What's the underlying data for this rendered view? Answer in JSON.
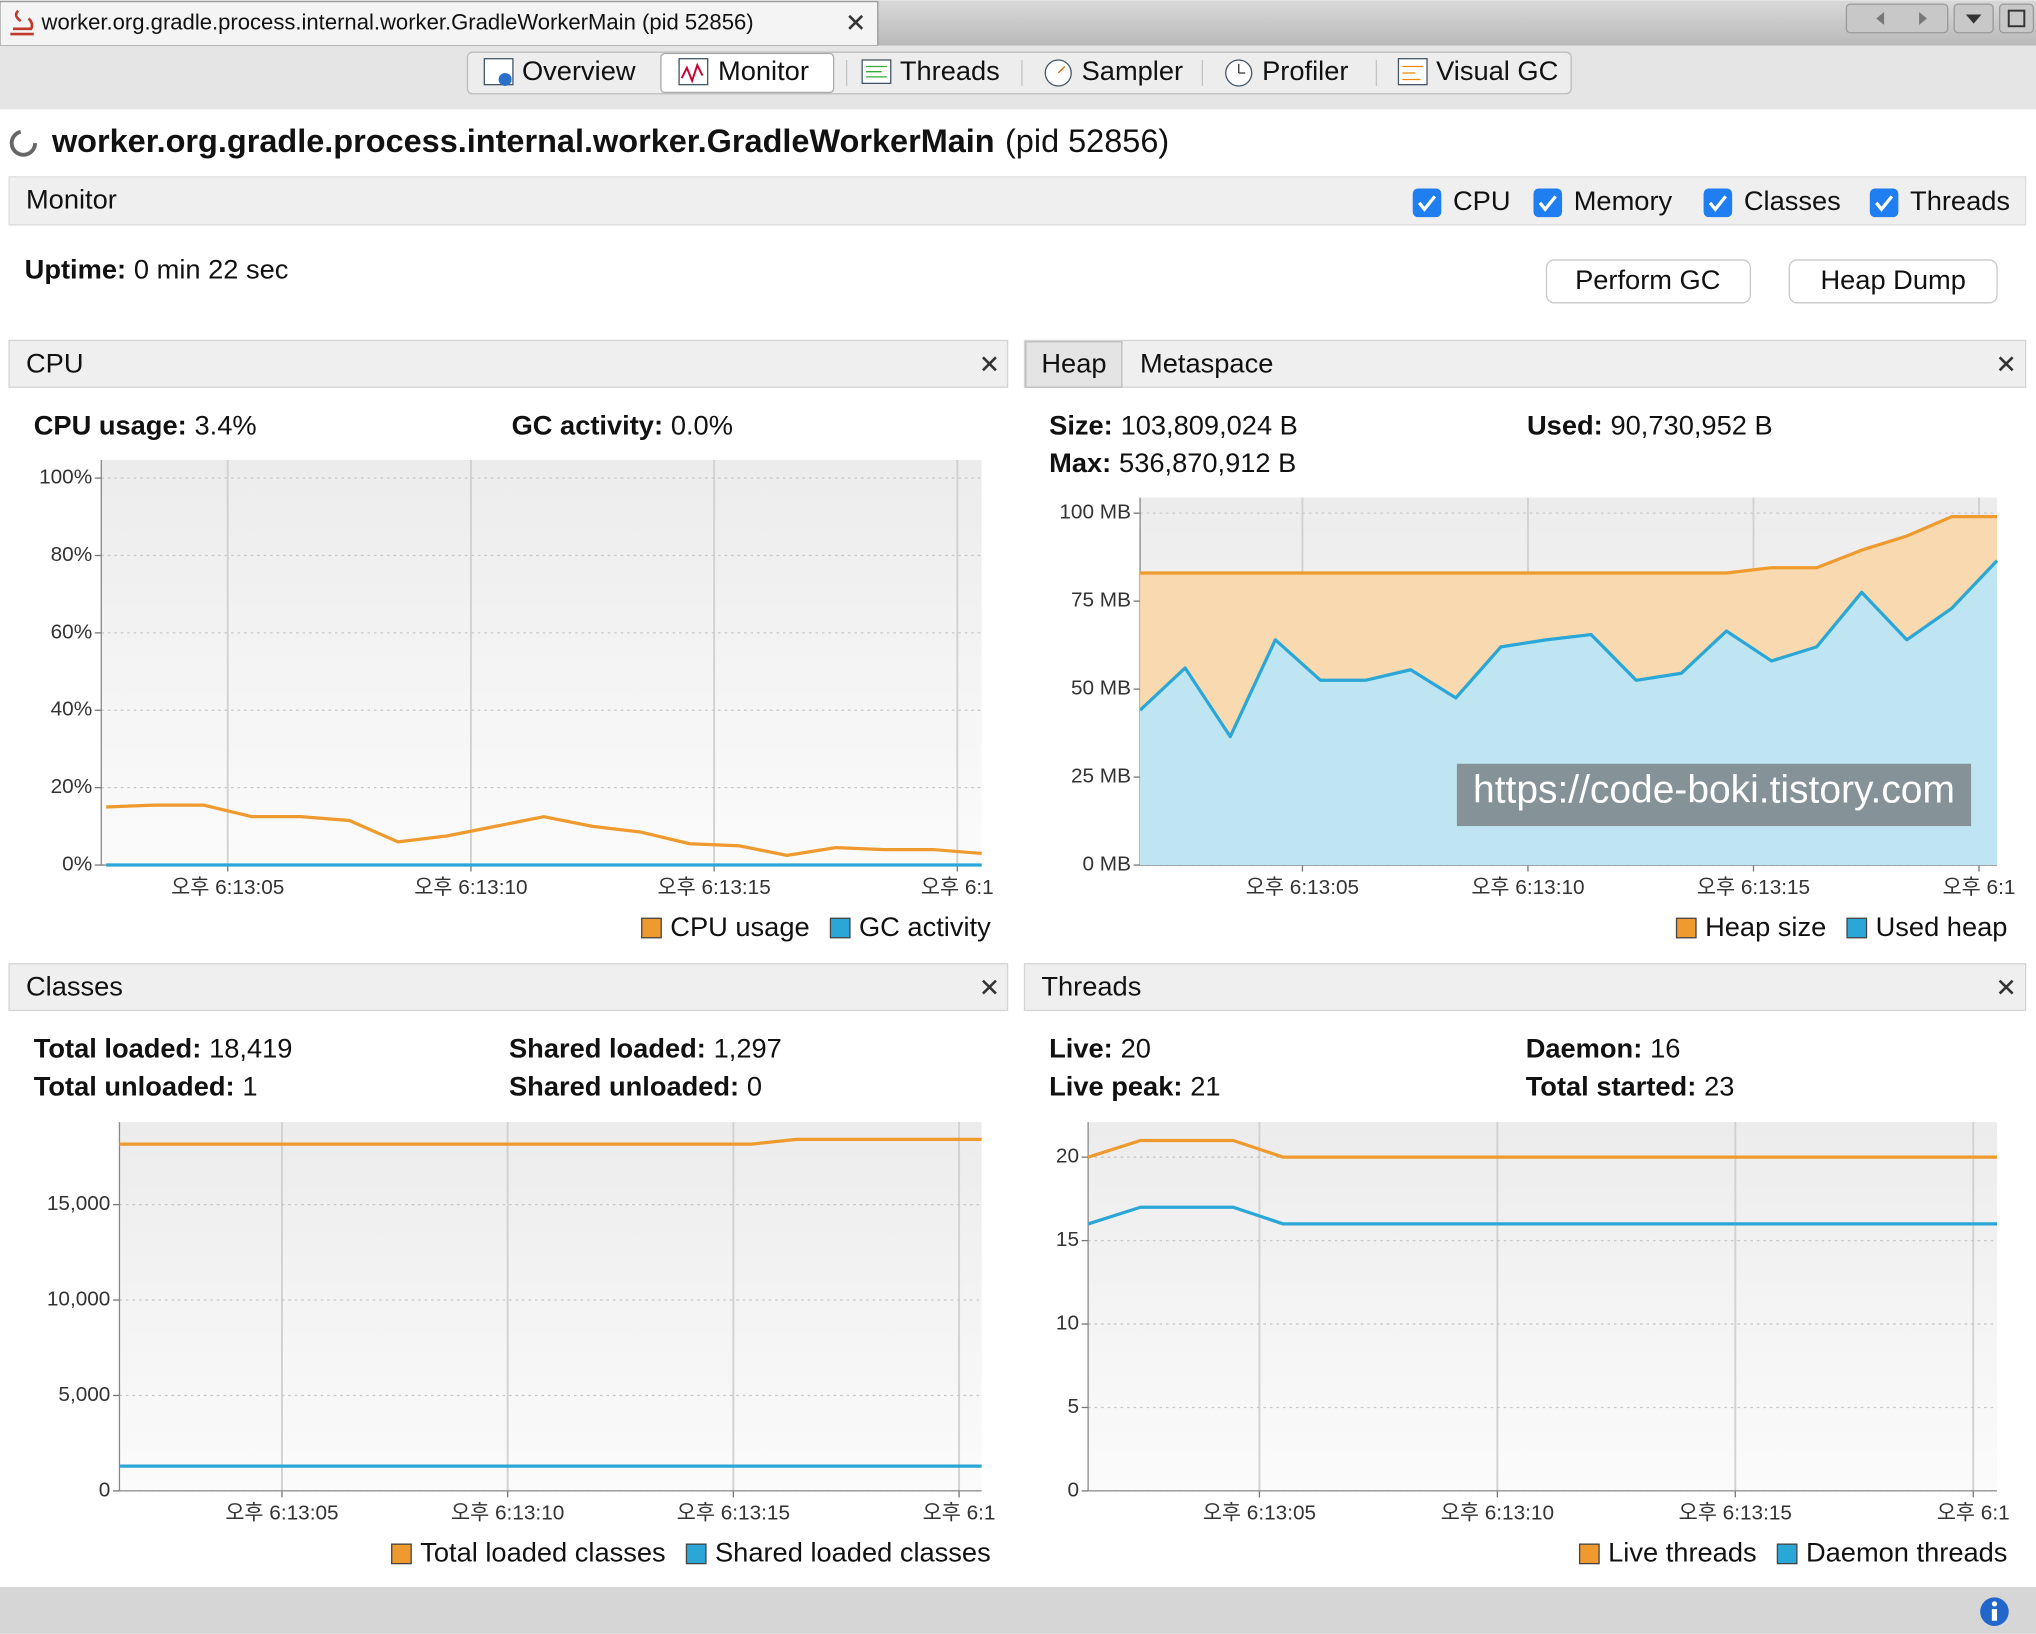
{
  "window": {
    "tab_title": "worker.org.gradle.process.internal.worker.GradleWorkerMain (pid 52856)",
    "tabs": [
      "Overview",
      "Monitor",
      "Threads",
      "Sampler",
      "Profiler",
      "Visual GC"
    ]
  },
  "header": {
    "app": "worker.org.gradle.process.internal.worker.GradleWorkerMain",
    "pid": "(pid 52856)"
  },
  "monitor": {
    "title": "Monitor",
    "checkboxes": [
      "CPU",
      "Memory",
      "Classes",
      "Threads"
    ],
    "uptime_label": "Uptime:",
    "uptime": "0 min 22 sec",
    "buttons": [
      "Perform GC",
      "Heap Dump"
    ]
  },
  "panels": [
    {
      "title": "CPU",
      "stats": [
        {
          "label": "CPU usage:",
          "value": "3.4%"
        },
        {
          "label": "GC activity:",
          "value": "0.0%"
        }
      ]
    },
    {
      "tabs": [
        "Heap",
        "Metaspace"
      ],
      "stats": [
        {
          "label": "Size:",
          "value": "103,809,024 B"
        },
        {
          "label": "Max:",
          "value": "536,870,912 B"
        },
        {
          "label": "Used:",
          "value": "90,730,952 B"
        }
      ]
    },
    {
      "title": "Classes",
      "stats": [
        {
          "label": "Total loaded:",
          "value": "18,419"
        },
        {
          "label": "Total unloaded:",
          "value": "1"
        },
        {
          "label": "Shared loaded:",
          "value": "1,297"
        },
        {
          "label": "Shared unloaded:",
          "value": "0"
        }
      ]
    },
    {
      "title": "Threads",
      "stats": [
        {
          "label": "Live:",
          "value": "20"
        },
        {
          "label": "Live peak:",
          "value": "21"
        },
        {
          "label": "Daemon:",
          "value": "16"
        },
        {
          "label": "Total started:",
          "value": "23"
        }
      ]
    }
  ],
  "watermark": "https://code-boki.tistory.com",
  "chart_data": [
    {
      "type": "line",
      "x": [
        2.5,
        3.5,
        4.5,
        5.5,
        6.5,
        7.5,
        8.5,
        9.5,
        10.5,
        11.5,
        12.5,
        13.5,
        14.5,
        15.5,
        16.5,
        17.5,
        18.5,
        19.5,
        20.5
      ],
      "series": [
        {
          "name": "CPU usage",
          "color": "#ef9a2e",
          "values": [
            15,
            15.5,
            15.5,
            12.5,
            12.5,
            11.5,
            6,
            7.5,
            10,
            12.5,
            10,
            8.5,
            5.5,
            5,
            2.5,
            4.5,
            4,
            4,
            3
          ]
        },
        {
          "name": "GC activity",
          "color": "#2aa7d6",
          "values": [
            0,
            0,
            0,
            0,
            0,
            0,
            0,
            0,
            0,
            0,
            0,
            0,
            0,
            0,
            0,
            0,
            0,
            0,
            0
          ]
        }
      ],
      "xlim": [
        2.4,
        20.5
      ],
      "xticks": [
        {
          "value": 5,
          "label": "오후 6:13:05"
        },
        {
          "value": 10,
          "label": "오후 6:13:10"
        },
        {
          "value": 15,
          "label": "오후 6:13:15"
        },
        {
          "value": 20,
          "label": "오후 6:1"
        }
      ],
      "ylim": [
        0,
        100
      ],
      "yticks": [
        {
          "value": 0,
          "label": "0%"
        },
        {
          "value": 20,
          "label": "20%"
        },
        {
          "value": 40,
          "label": "40%"
        },
        {
          "value": 60,
          "label": "60%"
        },
        {
          "value": 80,
          "label": "80%"
        },
        {
          "value": 100,
          "label": "100%"
        }
      ],
      "grid": true,
      "legend": "bottom-right"
    },
    {
      "type": "area",
      "x": [
        1.4,
        2.4,
        3.4,
        4.4,
        5.4,
        6.4,
        7.4,
        8.4,
        9.4,
        10.4,
        11.4,
        12.4,
        13.4,
        14.4,
        15.4,
        16.4,
        17.4,
        18.4,
        19.4,
        20.4
      ],
      "series": [
        {
          "name": "Heap size",
          "color": "#ef9a2e",
          "values": [
            83,
            83,
            83,
            83,
            83,
            83,
            83,
            83,
            83,
            83,
            83,
            83,
            83,
            83,
            84.5,
            84.5,
            89.5,
            93.5,
            99,
            99
          ]
        },
        {
          "name": "Used heap",
          "color": "#2aa7d6",
          "values": [
            44,
            56,
            36.5,
            64,
            52.5,
            52.5,
            55.5,
            47.5,
            62,
            64,
            65.5,
            52.5,
            54.5,
            66.5,
            58,
            62,
            77.5,
            64,
            73,
            86.5
          ]
        }
      ],
      "xlim": [
        1.4,
        20.4
      ],
      "xticks": [
        {
          "value": 5,
          "label": "오후 6:13:05"
        },
        {
          "value": 10,
          "label": "오후 6:13:10"
        },
        {
          "value": 15,
          "label": "오후 6:13:15"
        },
        {
          "value": 20,
          "label": "오후 6:1"
        }
      ],
      "ylim": [
        0,
        100
      ],
      "yticks": [
        {
          "value": 0,
          "label": "0 MB"
        },
        {
          "value": 25,
          "label": "25 MB"
        },
        {
          "value": 50,
          "label": "50 MB"
        },
        {
          "value": 75,
          "label": "75 MB"
        },
        {
          "value": 100,
          "label": "100 MB"
        }
      ],
      "grid": true,
      "legend": "bottom-right"
    },
    {
      "type": "line",
      "x": [
        1.4,
        15.4,
        16.4,
        20.5
      ],
      "series": [
        {
          "name": "Total loaded classes",
          "color": "#ef9a2e",
          "values": [
            18170,
            18170,
            18419,
            18419
          ]
        },
        {
          "name": "Shared loaded classes",
          "color": "#2aa7d6",
          "values": [
            1297,
            1297,
            1297,
            1297
          ]
        }
      ],
      "xlim": [
        1.4,
        20.5
      ],
      "xticks": [
        {
          "value": 5,
          "label": "오후 6:13:05"
        },
        {
          "value": 10,
          "label": "오후 6:13:10"
        },
        {
          "value": 15,
          "label": "오후 6:13:15"
        },
        {
          "value": 20,
          "label": "오후 6:1"
        }
      ],
      "ylim": [
        0,
        19320
      ],
      "yticks": [
        0,
        {
          "value": 5000,
          "label": "5,000"
        },
        {
          "value": 10000,
          "label": "10,000"
        },
        {
          "value": 15000,
          "label": "15,000"
        }
      ],
      "grid": true,
      "legend": "bottom-right"
    },
    {
      "type": "line",
      "x": [
        1.4,
        2.5,
        4.45,
        5.5,
        20.5
      ],
      "series": [
        {
          "name": "Live threads",
          "color": "#ef9a2e",
          "values": [
            20,
            21,
            21,
            20,
            20
          ]
        },
        {
          "name": "Daemon threads",
          "color": "#2aa7d6",
          "values": [
            16,
            17,
            17,
            16,
            16
          ]
        }
      ],
      "xlim": [
        1.4,
        20.5
      ],
      "xticks": [
        {
          "value": 5,
          "label": "오후 6:13:05"
        },
        {
          "value": 10,
          "label": "오후 6:13:10"
        },
        {
          "value": 15,
          "label": "오후 6:13:15"
        },
        {
          "value": 20,
          "label": "오후 6:1"
        }
      ],
      "ylim": [
        0,
        22.1
      ],
      "yticks": [
        0,
        5,
        10,
        15,
        20
      ],
      "grid": true,
      "legend": "bottom-right"
    }
  ]
}
